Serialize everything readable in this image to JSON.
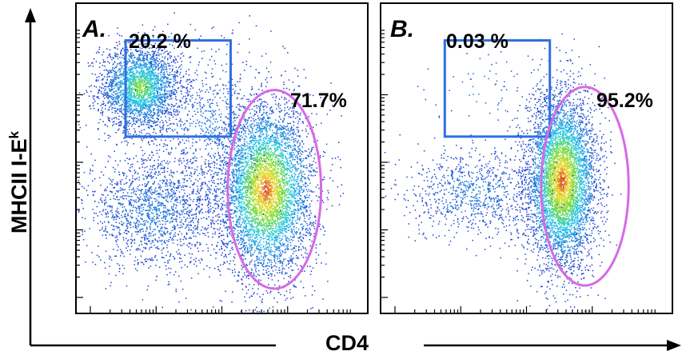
{
  "chart_data": [
    {
      "type": "scatter",
      "panel_label": "A.",
      "xlabel": "CD4",
      "ylabel": "MHCII I-Eᵏ",
      "x_scale": "log",
      "y_scale": "log",
      "grid": false,
      "populations": [
        {
          "x": 0.22,
          "y": 0.73,
          "spread": [
            0.07,
            0.07
          ],
          "count": 2600
        },
        {
          "x": 0.27,
          "y": 0.33,
          "spread": [
            0.12,
            0.09
          ],
          "count": 1700
        },
        {
          "x": 0.65,
          "y": 0.4,
          "spread": [
            0.08,
            0.14
          ],
          "count": 5200
        },
        {
          "x": 0.45,
          "y": 0.6,
          "spread": [
            0.1,
            0.14
          ],
          "count": 700
        }
      ],
      "gates": [
        {
          "shape": "rectangle",
          "color": "#2f6fe0",
          "label": "20.2 %",
          "x_range": [
            0.17,
            0.53
          ],
          "y_range": [
            0.57,
            0.88
          ]
        },
        {
          "shape": "ellipse",
          "color": "#d66ae6",
          "label": "71.7%",
          "center": [
            0.68,
            0.4
          ],
          "radii": [
            0.16,
            0.32
          ]
        }
      ]
    },
    {
      "type": "scatter",
      "panel_label": "B.",
      "xlabel": "CD4",
      "ylabel": "MHCII I-Eᵏ",
      "x_scale": "log",
      "y_scale": "log",
      "grid": false,
      "populations": [
        {
          "x": 0.62,
          "y": 0.43,
          "spread": [
            0.06,
            0.14
          ],
          "count": 5200
        },
        {
          "x": 0.32,
          "y": 0.39,
          "spread": [
            0.12,
            0.07
          ],
          "count": 900
        },
        {
          "x": 0.35,
          "y": 0.72,
          "spread": [
            0.09,
            0.06
          ],
          "count": 60
        }
      ],
      "gates": [
        {
          "shape": "rectangle",
          "color": "#2f6fe0",
          "label": "0.03 %",
          "x_range": [
            0.22,
            0.58
          ],
          "y_range": [
            0.57,
            0.88
          ]
        },
        {
          "shape": "ellipse",
          "color": "#d66ae6",
          "label": "95.2%",
          "center": [
            0.7,
            0.41
          ],
          "radii": [
            0.15,
            0.32
          ]
        }
      ]
    }
  ],
  "figure": {
    "xlabel": "CD4",
    "ylabel_main": "MHCII I-E",
    "ylabel_sup": "k"
  },
  "colors": {
    "low_density": "#1f3fd0",
    "mid_density": "#22c8e8",
    "high_density": "#d82a10",
    "rect_gate": "#2f6fe0",
    "ellipse_gate": "#d66ae6"
  }
}
